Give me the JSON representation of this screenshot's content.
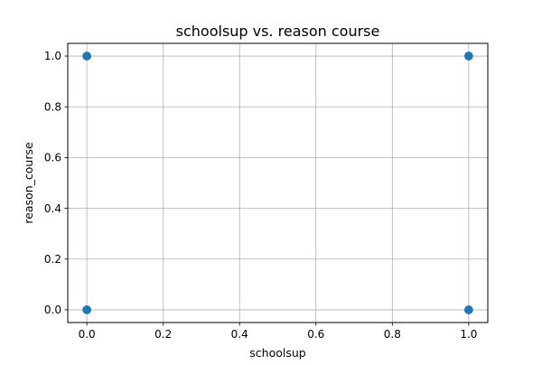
{
  "chart_data": {
    "type": "scatter",
    "title": "schoolsup vs. reason course",
    "xlabel": "schoolsup",
    "ylabel": "reason_course",
    "xlim": [
      -0.05,
      1.05
    ],
    "ylim": [
      -0.05,
      1.05
    ],
    "x_ticks": [
      0.0,
      0.2,
      0.4,
      0.6,
      0.8,
      1.0
    ],
    "x_tick_labels": [
      "0.0",
      "0.2",
      "0.4",
      "0.6",
      "0.8",
      "1.0"
    ],
    "y_ticks": [
      0.0,
      0.2,
      0.4,
      0.6,
      0.8,
      1.0
    ],
    "y_tick_labels": [
      "0.0",
      "0.2",
      "0.4",
      "0.6",
      "0.8",
      "1.0"
    ],
    "grid": true,
    "legend": "none",
    "marker_color": "#1f77b4",
    "points": [
      {
        "x": 0,
        "y": 1
      },
      {
        "x": 1,
        "y": 1
      },
      {
        "x": 0,
        "y": 0
      },
      {
        "x": 1,
        "y": 0
      }
    ]
  }
}
